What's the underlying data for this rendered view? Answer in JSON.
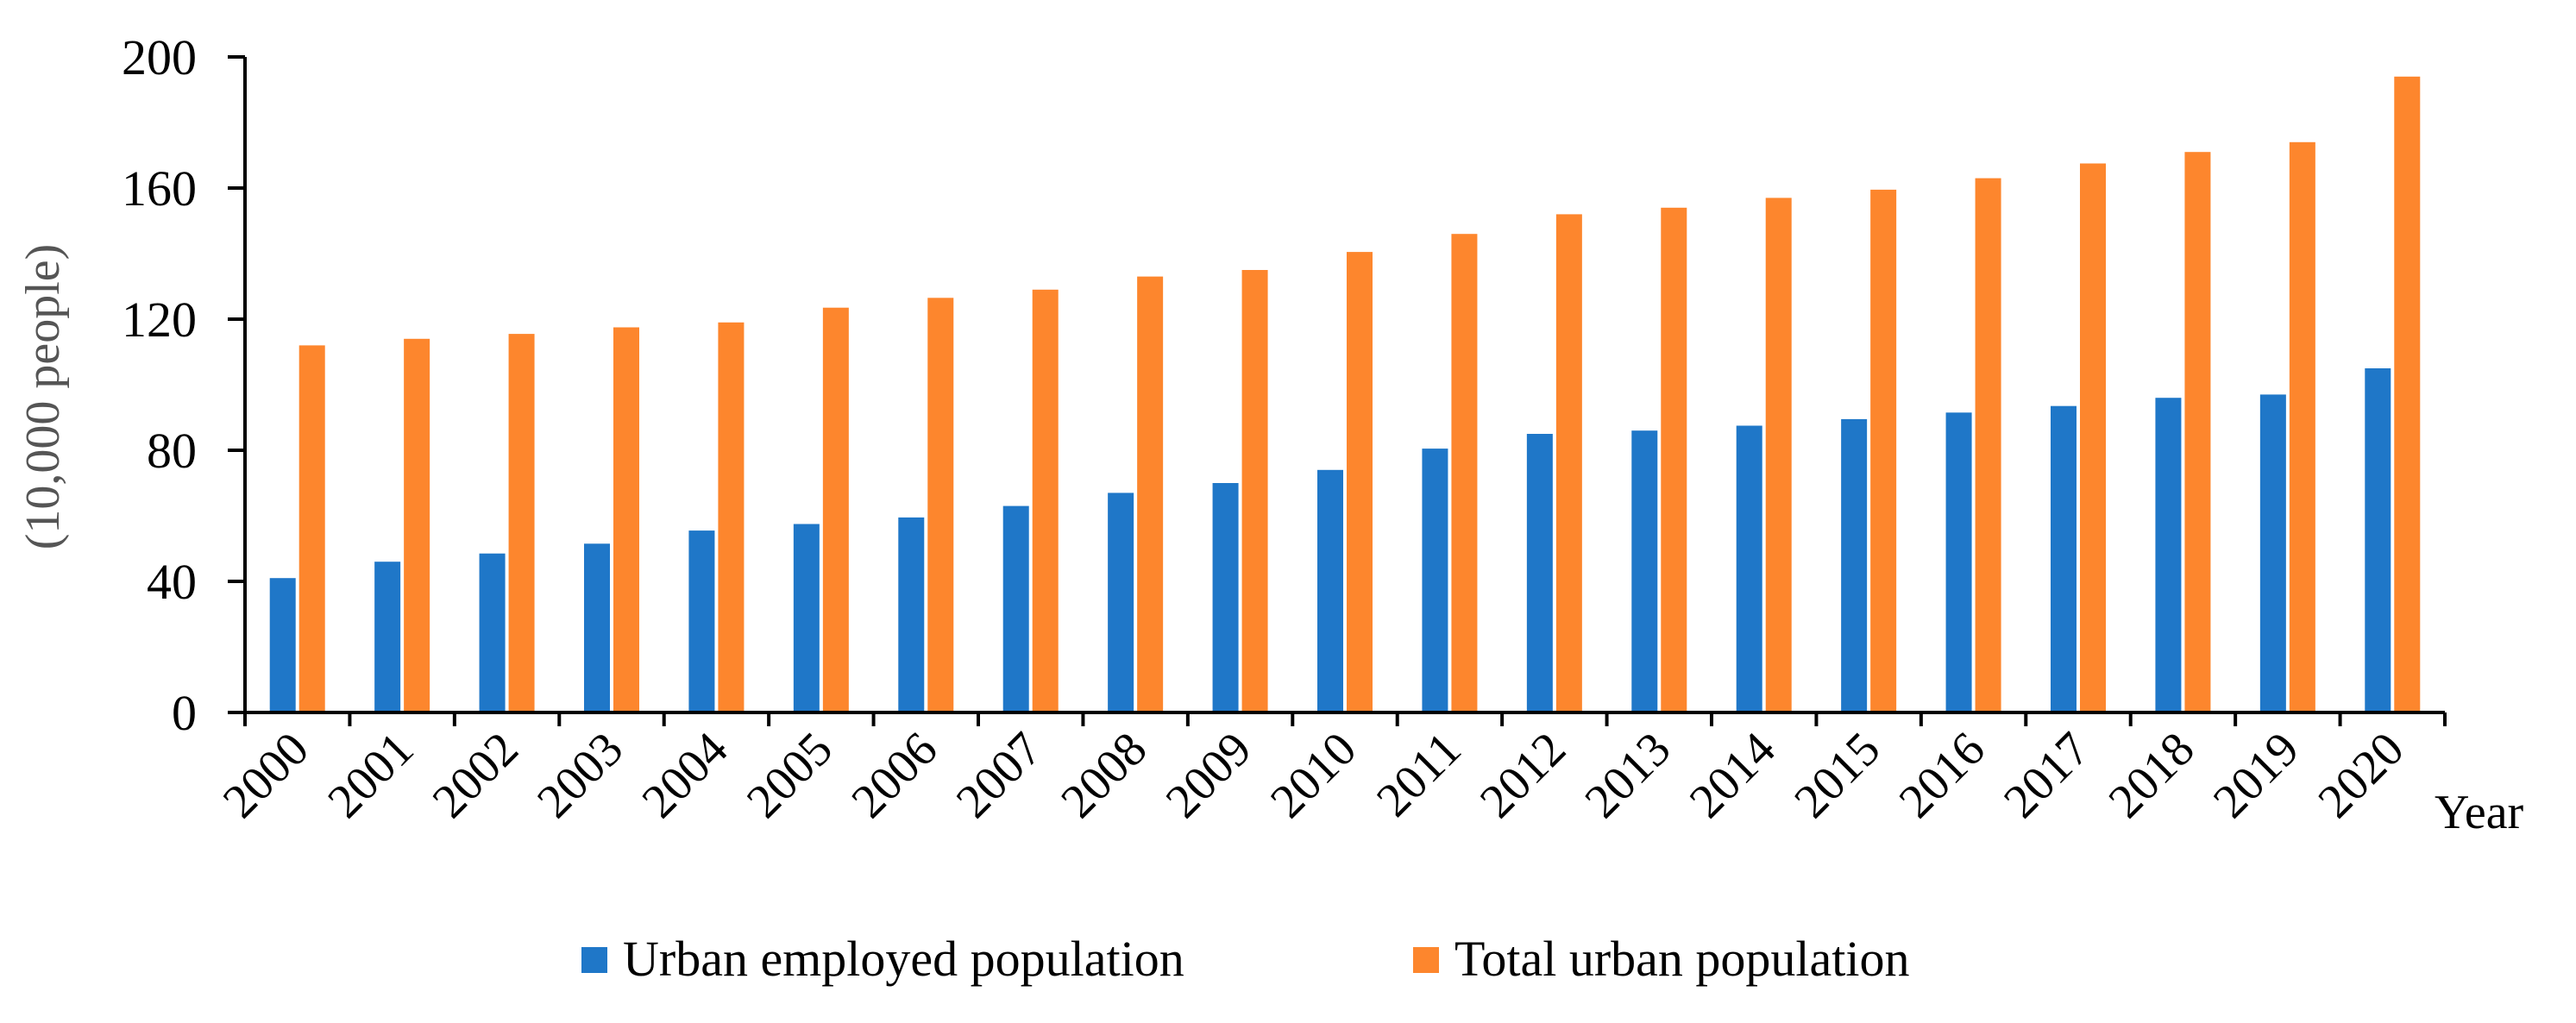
{
  "chart_data": {
    "type": "bar",
    "title": "",
    "xlabel": "Year",
    "ylabel": "(10,000 people)",
    "ylim": [
      0,
      200
    ],
    "yticks": [
      "0",
      "40",
      "80",
      "120",
      "160",
      "200"
    ],
    "ytick_values": [
      0,
      40,
      80,
      120,
      160,
      200
    ],
    "grid": false,
    "legend_position": "bottom",
    "categories": [
      "2000",
      "2001",
      "2002",
      "2003",
      "2004",
      "2005",
      "2006",
      "2007",
      "2008",
      "2009",
      "2010",
      "2011",
      "2012",
      "2013",
      "2014",
      "2015",
      "2016",
      "2017",
      "2018",
      "2019",
      "2020"
    ],
    "series": [
      {
        "name": "Urban employed population",
        "color": "#1f77c8",
        "values": [
          41,
          46,
          48.5,
          51.5,
          55.5,
          57.5,
          59.5,
          63,
          67,
          70,
          74,
          80.5,
          85,
          86,
          87.5,
          89.5,
          91.5,
          93.5,
          96,
          97,
          105
        ]
      },
      {
        "name": "Total urban population",
        "color": "#fd862d",
        "values": [
          112,
          114,
          115.5,
          117.5,
          119,
          123.5,
          126.5,
          129,
          133,
          135,
          140.5,
          146,
          152,
          154,
          157,
          159.5,
          163,
          167.5,
          171,
          174,
          194
        ]
      }
    ]
  }
}
